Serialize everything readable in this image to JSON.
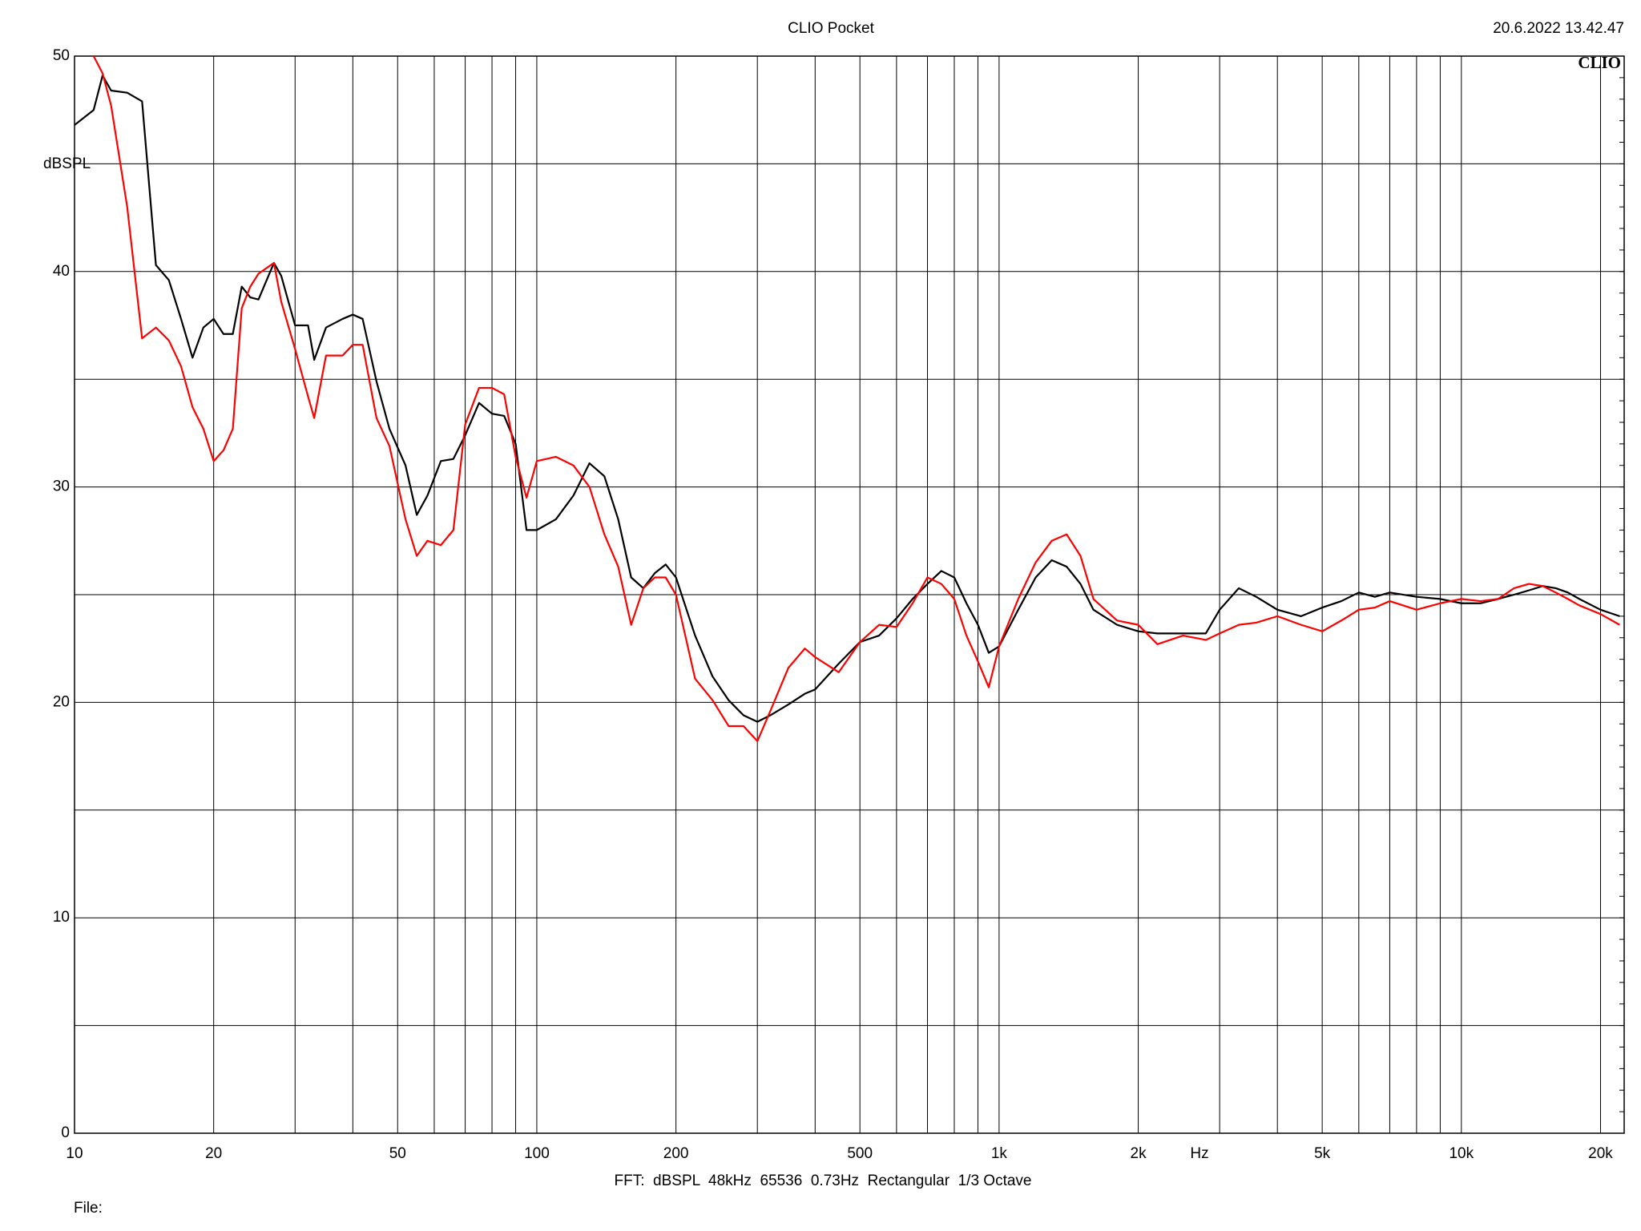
{
  "chart_data": {
    "type": "line",
    "title": "CLIO Pocket",
    "timestamp": "20.6.2022 13.42.47",
    "logo": "CLIO",
    "y_label": "dBSPL",
    "x_unit_label": "Hz",
    "footer": "FFT:  dBSPL  48kHz  65536  0.73Hz  Rectangular  1/3 Octave",
    "file_label": "File:",
    "xscale": "log",
    "grid": true,
    "xlim": [
      10,
      22500
    ],
    "ylim": [
      0,
      50
    ],
    "yticks": [
      0,
      10,
      20,
      30,
      40,
      50
    ],
    "minor_yticks": [
      5,
      15,
      25,
      35,
      45
    ],
    "xticks": [
      10,
      20,
      50,
      100,
      200,
      500,
      {
        "value": 1000,
        "label": "1k"
      },
      {
        "value": 2000,
        "label": "2k"
      },
      {
        "value": 5000,
        "label": "5k"
      },
      {
        "value": 10000,
        "label": "10k"
      },
      {
        "value": 20000,
        "label": "20k"
      }
    ],
    "minor_xticks": [
      30,
      40,
      60,
      70,
      80,
      90,
      300,
      400,
      600,
      700,
      800,
      900,
      3000,
      4000,
      6000,
      7000,
      8000,
      9000
    ],
    "x": [
      10,
      11,
      11.5,
      12,
      13,
      14,
      15,
      16,
      17,
      18,
      19,
      20,
      21,
      22,
      23,
      24,
      25,
      27,
      28,
      30,
      32,
      33,
      35,
      38,
      40,
      42,
      45,
      48,
      52,
      55,
      58,
      62,
      66,
      70,
      75,
      80,
      85,
      90,
      95,
      100,
      110,
      120,
      130,
      140,
      150,
      160,
      170,
      180,
      190,
      200,
      220,
      240,
      260,
      280,
      300,
      320,
      350,
      380,
      400,
      450,
      500,
      550,
      600,
      650,
      700,
      750,
      800,
      850,
      900,
      950,
      1000,
      1100,
      1200,
      1300,
      1400,
      1500,
      1600,
      1800,
      2000,
      2200,
      2500,
      2800,
      3000,
      3300,
      3600,
      4000,
      4500,
      5000,
      5500,
      6000,
      6500,
      7000,
      8000,
      9000,
      10000,
      11000,
      12000,
      13000,
      14000,
      15000,
      16000,
      17000,
      18000,
      20000,
      22000
    ],
    "series": [
      {
        "color": "#000000",
        "values": [
          46.8,
          47.5,
          49.1,
          48.4,
          48.3,
          47.9,
          40.3,
          39.6,
          37.8,
          36.0,
          37.4,
          37.8,
          37.1,
          37.1,
          39.3,
          38.8,
          38.7,
          40.4,
          39.8,
          37.5,
          37.5,
          35.9,
          37.4,
          37.8,
          38.0,
          37.8,
          34.9,
          32.7,
          31.0,
          28.7,
          29.6,
          31.2,
          31.3,
          32.4,
          33.9,
          33.4,
          33.3,
          32.0,
          28.0,
          28.0,
          28.5,
          29.6,
          31.1,
          30.5,
          28.5,
          25.8,
          25.3,
          26.0,
          26.4,
          25.8,
          23.1,
          21.2,
          20.1,
          19.4,
          19.1,
          19.4,
          19.9,
          20.4,
          20.6,
          21.8,
          22.8,
          23.1,
          23.9,
          24.8,
          25.5,
          26.1,
          25.8,
          24.6,
          23.6,
          22.3,
          22.6,
          24.3,
          25.8,
          26.6,
          26.3,
          25.5,
          24.3,
          23.6,
          23.3,
          23.2,
          23.2,
          23.2,
          24.3,
          25.3,
          24.9,
          24.3,
          24.0,
          24.4,
          24.7,
          25.1,
          24.9,
          25.1,
          24.9,
          24.8,
          24.6,
          24.6,
          24.8,
          25.0,
          25.2,
          25.4,
          25.3,
          25.1,
          24.8,
          24.3,
          24.0
        ]
      },
      {
        "color": "#ff0000",
        "values": [
          null,
          50,
          49.2,
          47.7,
          43.0,
          36.9,
          37.4,
          36.8,
          35.6,
          33.7,
          32.7,
          31.2,
          31.7,
          32.7,
          38.3,
          39.3,
          39.9,
          40.4,
          38.6,
          36.4,
          34.2,
          33.2,
          36.1,
          36.1,
          36.6,
          36.6,
          33.2,
          31.9,
          28.5,
          26.8,
          27.5,
          27.3,
          28.0,
          32.9,
          34.6,
          34.6,
          34.3,
          31.4,
          29.5,
          31.2,
          31.4,
          31.0,
          30.0,
          27.8,
          26.3,
          23.6,
          25.3,
          25.8,
          25.8,
          25.0,
          21.1,
          20.1,
          18.9,
          18.9,
          18.2,
          19.6,
          21.6,
          22.5,
          22.1,
          21.4,
          22.8,
          23.6,
          23.5,
          24.6,
          25.8,
          25.5,
          24.8,
          23.1,
          21.9,
          20.7,
          22.6,
          24.8,
          26.5,
          27.5,
          27.8,
          26.8,
          24.8,
          23.8,
          23.6,
          22.7,
          23.1,
          22.9,
          23.2,
          23.6,
          23.7,
          24.0,
          23.6,
          23.3,
          23.8,
          24.3,
          24.4,
          24.7,
          24.3,
          24.6,
          24.8,
          24.7,
          24.8,
          25.3,
          25.5,
          25.4,
          25.1,
          24.8,
          24.5,
          24.1,
          23.6
        ]
      }
    ]
  }
}
